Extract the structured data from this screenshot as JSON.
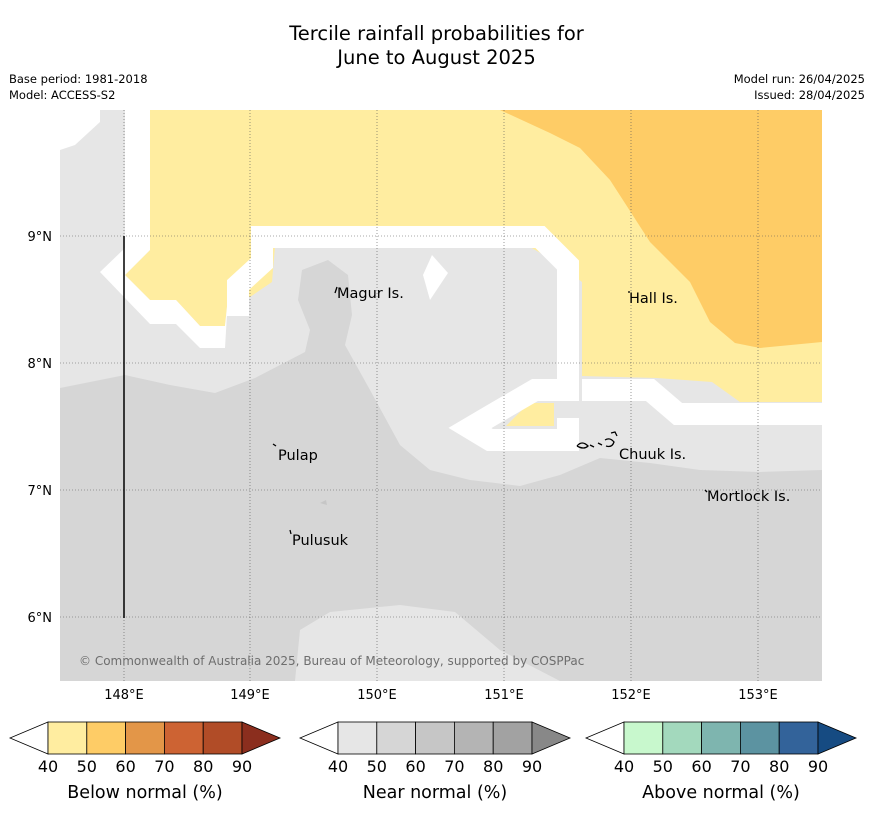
{
  "title": {
    "line1": "Tercile rainfall probabilities for",
    "line2": "June to August 2025"
  },
  "meta": {
    "base_period": "Base period: 1981-2018",
    "model": "Model: ACCESS-S2",
    "model_run": "Model run: 26/04/2025",
    "issued": "Issued: 28/04/2025"
  },
  "map": {
    "lat_ticks": [
      "9°N",
      "8°N",
      "7°N",
      "6°N"
    ],
    "lon_ticks": [
      "148°E",
      "149°E",
      "150°E",
      "151°E",
      "152°E",
      "153°E"
    ],
    "places": {
      "magur": "Magur Is.",
      "hall": "Hall Is.",
      "pulap": "Pulap",
      "chuuk": "Chuuk Is.",
      "mortlock": "Mortlock Is.",
      "pulusuk": "Pulusuk"
    },
    "copyright": "© Commonwealth of Australia 2025, Bureau of Meteorology, supported by COSPPac",
    "colors": {
      "below_40_50": "#ffeda0",
      "below_50_60": "#fecc66",
      "near_40_50": "#e6e6e6",
      "near_50_60": "#d6d6d6",
      "near_60_70": "#c6c6c6"
    }
  },
  "colorbars": [
    {
      "label": "Below normal (%)",
      "ticks": [
        "40",
        "50",
        "60",
        "70",
        "80",
        "90"
      ],
      "colors": [
        "#ffeda0",
        "#fecc66",
        "#e39648",
        "#cd6333",
        "#b14c27",
        "#8b2e1e"
      ]
    },
    {
      "label": "Near normal (%)",
      "ticks": [
        "40",
        "50",
        "60",
        "70",
        "80",
        "90"
      ],
      "colors": [
        "#e6e6e6",
        "#d6d6d6",
        "#c6c6c6",
        "#b4b4b4",
        "#a2a2a2",
        "#888888"
      ]
    },
    {
      "label": "Above normal (%)",
      "ticks": [
        "40",
        "50",
        "60",
        "70",
        "80",
        "90"
      ],
      "colors": [
        "#c8f8cd",
        "#a3d9bd",
        "#7eb5af",
        "#5c93a1",
        "#33639a",
        "#164b82"
      ]
    }
  ]
}
